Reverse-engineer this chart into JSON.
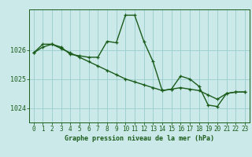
{
  "title": "Graphe pression niveau de la mer (hPa)",
  "bg_color": "#cce9e9",
  "plot_bg_color": "#cce9e9",
  "grid_color": "#99cccc",
  "line_color": "#1a5c1a",
  "marker_color": "#1a5c1a",
  "xlim": [
    -0.5,
    23.5
  ],
  "ylim": [
    1023.5,
    1027.4
  ],
  "yticks": [
    1024,
    1025,
    1026
  ],
  "xticks": [
    0,
    1,
    2,
    3,
    4,
    5,
    6,
    7,
    8,
    9,
    10,
    11,
    12,
    13,
    14,
    15,
    16,
    17,
    18,
    19,
    20,
    21,
    22,
    23
  ],
  "series1_x": [
    0,
    1,
    2,
    3,
    4,
    5,
    6,
    7,
    8,
    9,
    10,
    11,
    12,
    13,
    14,
    15,
    16,
    17,
    18,
    19,
    20,
    21,
    22,
    23
  ],
  "series1_y": [
    1025.9,
    1026.2,
    1026.2,
    1026.1,
    1025.85,
    1025.8,
    1025.75,
    1025.75,
    1026.3,
    1026.25,
    1027.2,
    1027.2,
    1026.3,
    1025.6,
    1024.6,
    1024.65,
    1025.1,
    1025.0,
    1024.75,
    1024.1,
    1024.05,
    1024.5,
    1024.55,
    1024.55
  ],
  "series2_x": [
    0,
    1,
    2,
    3,
    4,
    5,
    6,
    7,
    8,
    9,
    10,
    11,
    12,
    13,
    14,
    15,
    16,
    17,
    18,
    19,
    20,
    21,
    22,
    23
  ],
  "series2_y": [
    1025.9,
    1026.1,
    1026.2,
    1026.05,
    1025.9,
    1025.75,
    1025.6,
    1025.45,
    1025.3,
    1025.15,
    1025.0,
    1024.9,
    1024.8,
    1024.7,
    1024.6,
    1024.65,
    1024.7,
    1024.65,
    1024.6,
    1024.45,
    1024.3,
    1024.5,
    1024.55,
    1024.55
  ],
  "tick_fontsize": 5.5,
  "label_fontsize": 6.0,
  "linewidth": 1.0,
  "markersize": 3.5
}
